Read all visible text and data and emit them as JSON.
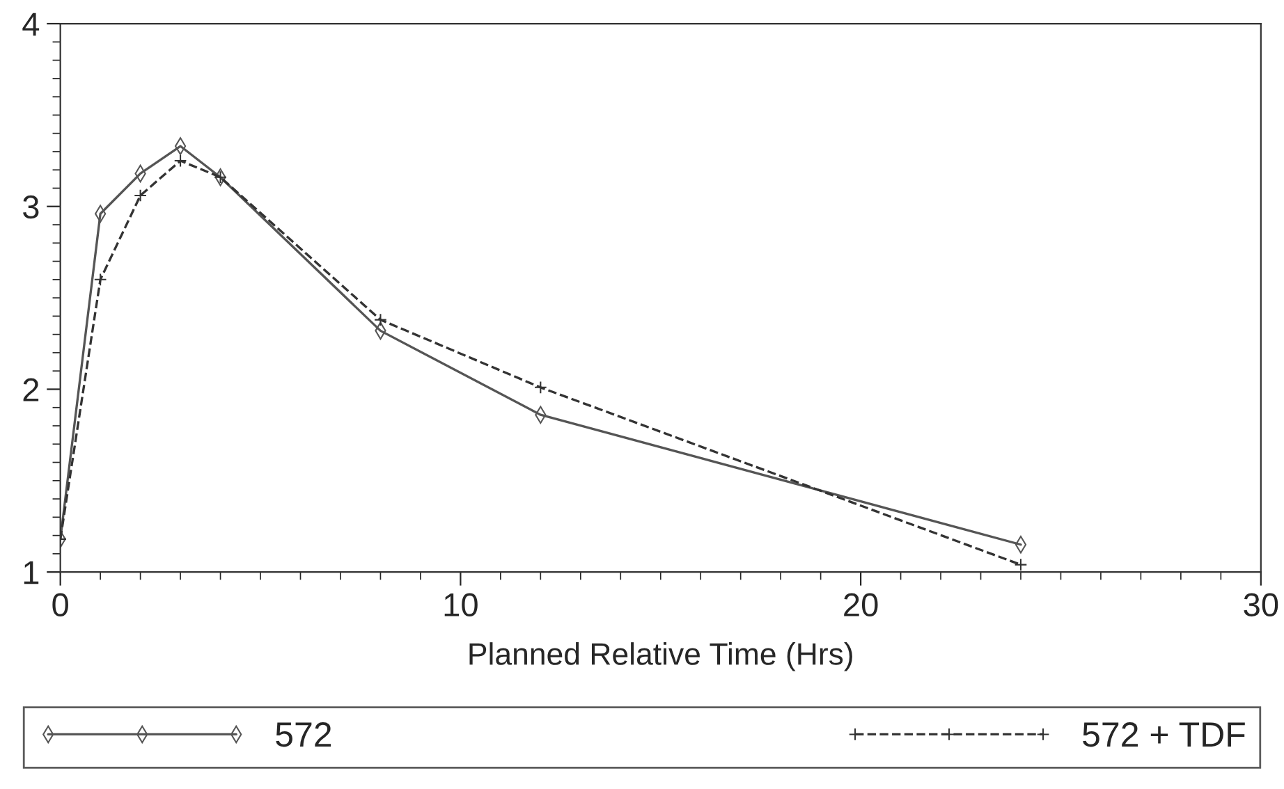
{
  "chart_data": {
    "type": "line",
    "xlabel": "Planned Relative Time (Hrs)",
    "x": [
      0,
      1,
      2,
      3,
      4,
      8,
      12,
      24
    ],
    "series": [
      {
        "name": "572",
        "color": "#555555",
        "marker": "diamond",
        "line_style": "solid",
        "values": [
          1.18,
          2.96,
          3.18,
          3.33,
          3.16,
          2.32,
          1.86,
          1.15
        ]
      },
      {
        "name": "572 + TDF",
        "color": "#333333",
        "marker": "cross",
        "line_style": "dashed",
        "values": [
          1.18,
          2.6,
          3.06,
          3.25,
          3.16,
          2.38,
          2.01,
          1.04
        ]
      }
    ],
    "xlim": [
      0,
      30
    ],
    "xticks": [
      0,
      10,
      20,
      30
    ],
    "ylim": [
      1,
      4
    ],
    "yticks": [
      1,
      2,
      3,
      4
    ],
    "grid": false,
    "legend": "bottom"
  }
}
